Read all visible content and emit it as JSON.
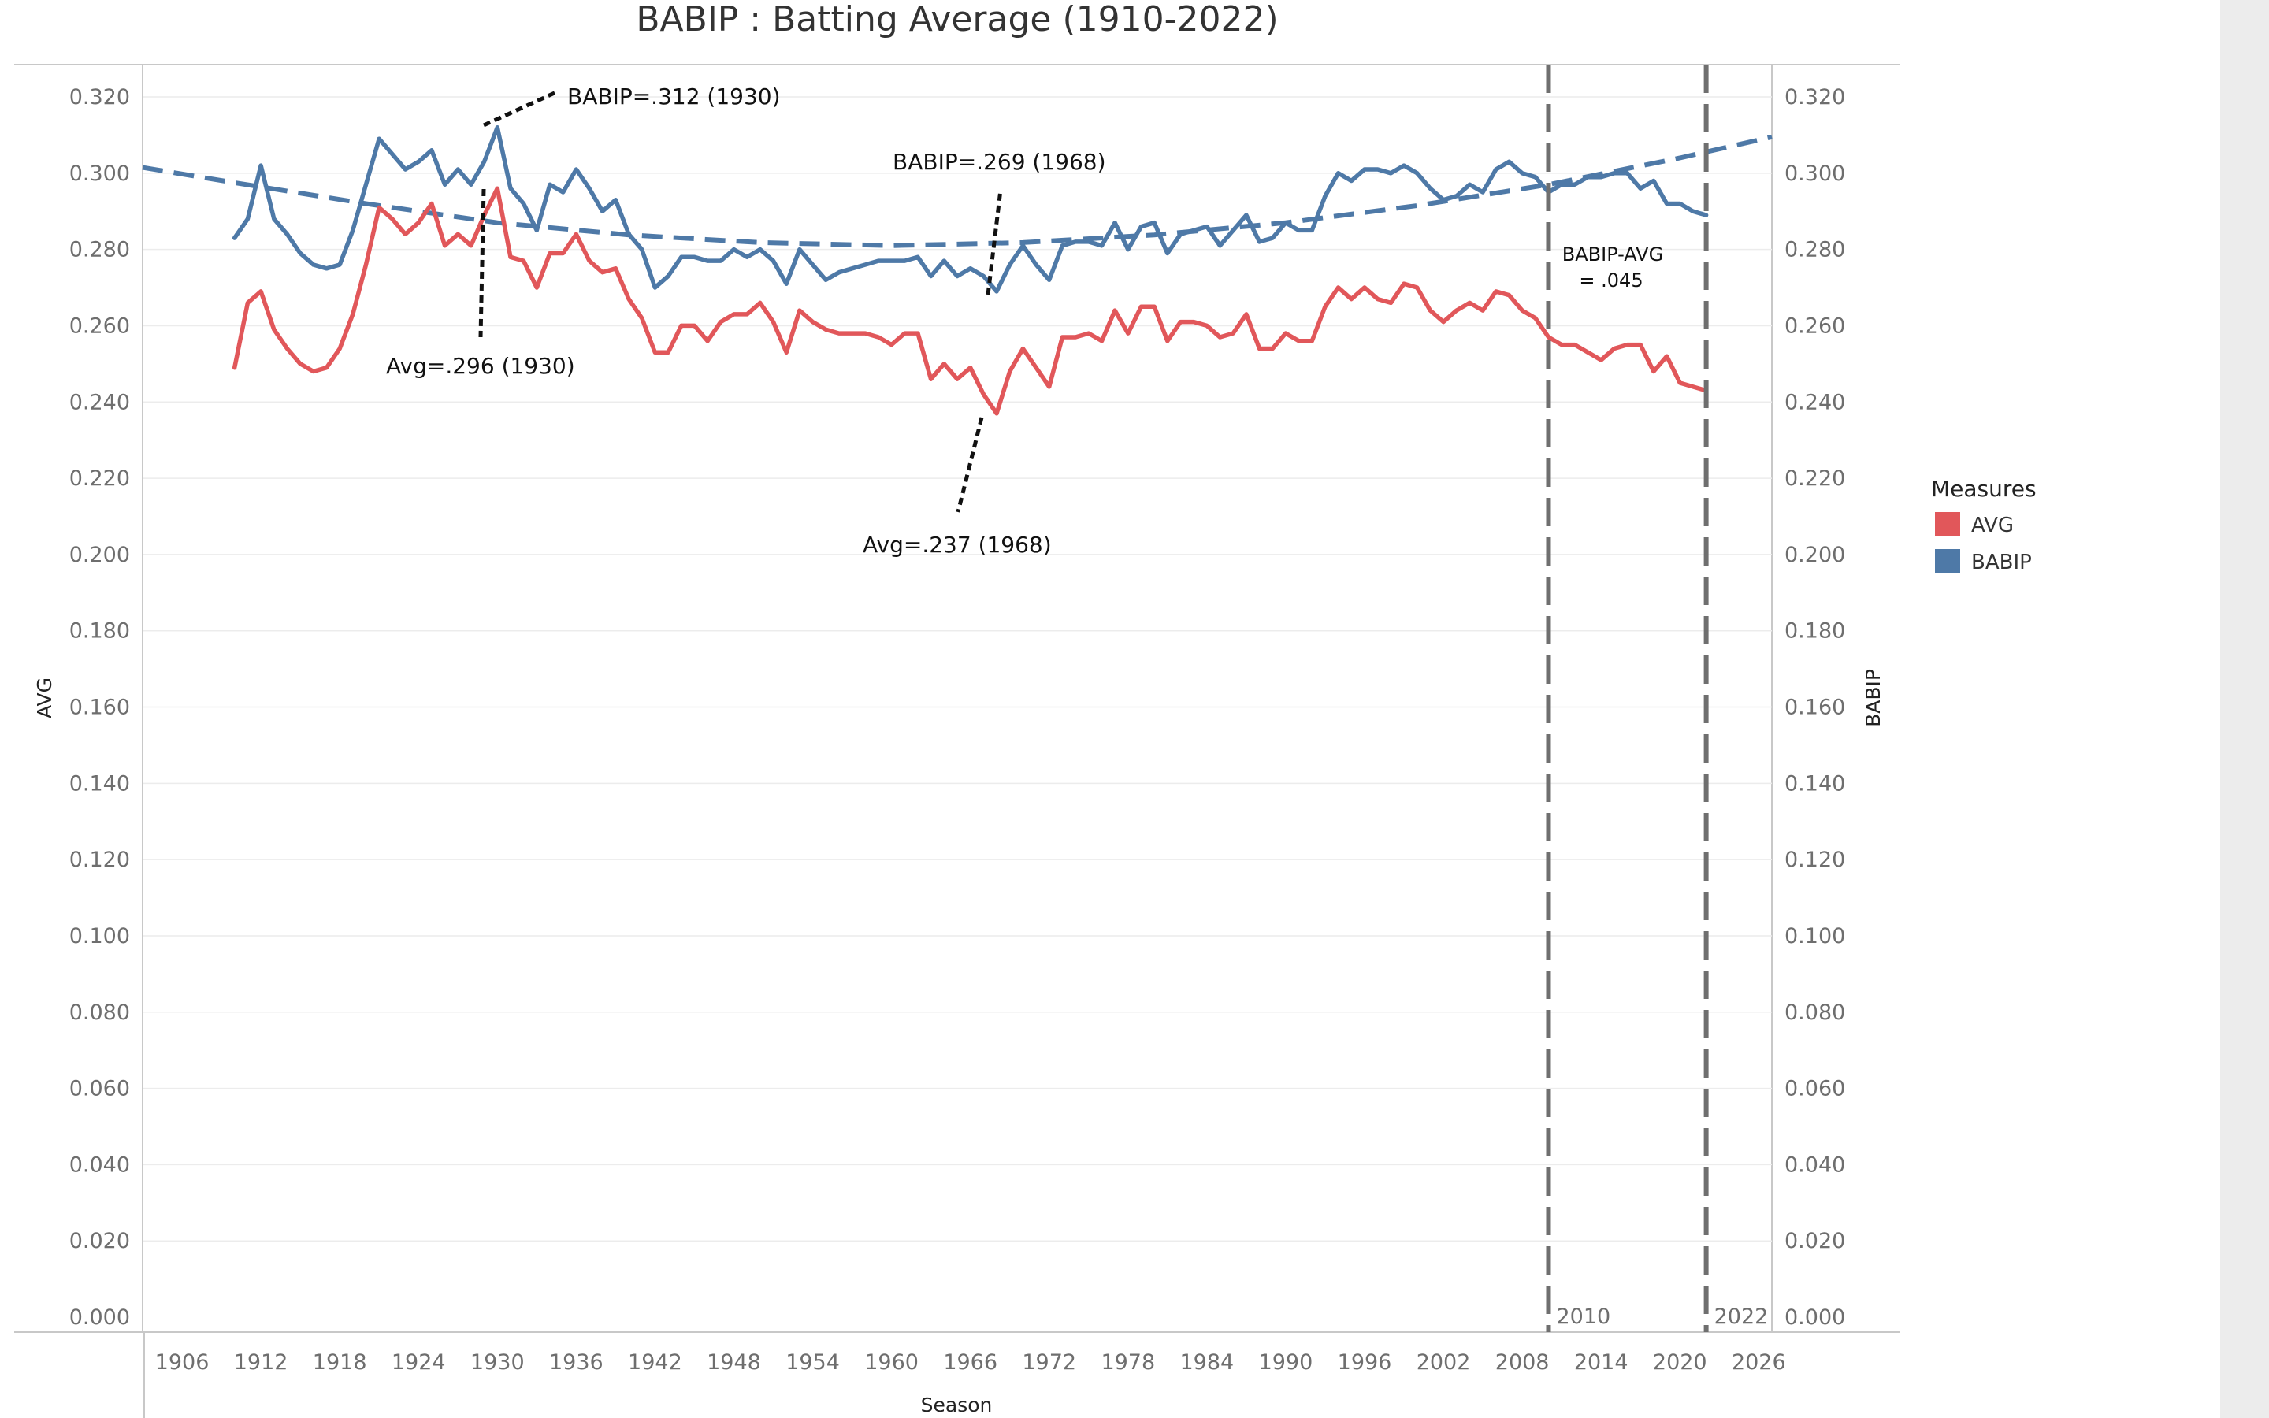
{
  "colors": {
    "avg": "#e1575a",
    "babip": "#4e79a7",
    "trend": "#4e79a7",
    "refline": "#6f6f6f",
    "grid": "#ececec"
  },
  "chart_data": {
    "type": "line",
    "title": "BABIP : Batting Average (1910-2022)",
    "xlabel": "Season",
    "ylabel_left": "AVG",
    "ylabel_right": "BABIP",
    "xlim": [
      1903,
      2027
    ],
    "ylim": [
      0,
      0.328
    ],
    "x_ticks": [
      1906,
      1912,
      1918,
      1924,
      1930,
      1936,
      1942,
      1948,
      1954,
      1960,
      1966,
      1972,
      1978,
      1984,
      1990,
      1996,
      2002,
      2008,
      2014,
      2020,
      2026
    ],
    "y_ticks": [
      "0.000",
      "0.020",
      "0.040",
      "0.060",
      "0.080",
      "0.100",
      "0.120",
      "0.140",
      "0.160",
      "0.180",
      "0.200",
      "0.220",
      "0.240",
      "0.260",
      "0.280",
      "0.300",
      "0.320"
    ],
    "years": [
      1910,
      1911,
      1912,
      1913,
      1914,
      1915,
      1916,
      1917,
      1918,
      1919,
      1920,
      1921,
      1922,
      1923,
      1924,
      1925,
      1926,
      1927,
      1928,
      1929,
      1930,
      1931,
      1932,
      1933,
      1934,
      1935,
      1936,
      1937,
      1938,
      1939,
      1940,
      1941,
      1942,
      1943,
      1944,
      1945,
      1946,
      1947,
      1948,
      1949,
      1950,
      1951,
      1952,
      1953,
      1954,
      1955,
      1956,
      1957,
      1958,
      1959,
      1960,
      1961,
      1962,
      1963,
      1964,
      1965,
      1966,
      1967,
      1968,
      1969,
      1970,
      1971,
      1972,
      1973,
      1974,
      1975,
      1976,
      1977,
      1978,
      1979,
      1980,
      1981,
      1982,
      1983,
      1984,
      1985,
      1986,
      1987,
      1988,
      1989,
      1990,
      1991,
      1992,
      1993,
      1994,
      1995,
      1996,
      1997,
      1998,
      1999,
      2000,
      2001,
      2002,
      2003,
      2004,
      2005,
      2006,
      2007,
      2008,
      2009,
      2010,
      2011,
      2012,
      2013,
      2014,
      2015,
      2016,
      2017,
      2018,
      2019,
      2020,
      2021,
      2022
    ],
    "series": [
      {
        "name": "AVG",
        "axis": "left",
        "values": [
          0.249,
          0.266,
          0.269,
          0.259,
          0.254,
          0.25,
          0.248,
          0.249,
          0.254,
          0.263,
          0.276,
          0.291,
          0.288,
          0.284,
          0.287,
          0.292,
          0.281,
          0.284,
          0.281,
          0.289,
          0.296,
          0.278,
          0.277,
          0.27,
          0.279,
          0.279,
          0.284,
          0.277,
          0.274,
          0.275,
          0.267,
          0.262,
          0.253,
          0.253,
          0.26,
          0.26,
          0.256,
          0.261,
          0.263,
          0.263,
          0.266,
          0.261,
          0.253,
          0.264,
          0.261,
          0.259,
          0.258,
          0.258,
          0.258,
          0.257,
          0.255,
          0.258,
          0.258,
          0.246,
          0.25,
          0.246,
          0.249,
          0.242,
          0.237,
          0.248,
          0.254,
          0.249,
          0.244,
          0.257,
          0.257,
          0.258,
          0.256,
          0.264,
          0.258,
          0.265,
          0.265,
          0.256,
          0.261,
          0.261,
          0.26,
          0.257,
          0.258,
          0.263,
          0.254,
          0.254,
          0.258,
          0.256,
          0.256,
          0.265,
          0.27,
          0.267,
          0.27,
          0.267,
          0.266,
          0.271,
          0.27,
          0.264,
          0.261,
          0.264,
          0.266,
          0.264,
          0.269,
          0.268,
          0.264,
          0.262,
          0.257,
          0.255,
          0.255,
          0.253,
          0.251,
          0.254,
          0.255,
          0.255,
          0.248,
          0.252,
          0.245,
          0.244,
          0.243
        ]
      },
      {
        "name": "BABIP",
        "axis": "right",
        "values": [
          0.283,
          0.288,
          0.302,
          0.288,
          0.284,
          0.279,
          0.276,
          0.275,
          0.276,
          0.285,
          0.297,
          0.309,
          0.305,
          0.301,
          0.303,
          0.306,
          0.297,
          0.301,
          0.297,
          0.303,
          0.312,
          0.296,
          0.292,
          0.285,
          0.297,
          0.295,
          0.301,
          0.296,
          0.29,
          0.293,
          0.284,
          0.28,
          0.27,
          0.273,
          0.278,
          0.278,
          0.277,
          0.277,
          0.28,
          0.278,
          0.28,
          0.277,
          0.271,
          0.28,
          0.276,
          0.272,
          0.274,
          0.275,
          0.276,
          0.277,
          0.277,
          0.277,
          0.278,
          0.273,
          0.277,
          0.273,
          0.275,
          0.273,
          0.269,
          0.276,
          0.281,
          0.276,
          0.272,
          0.281,
          0.282,
          0.282,
          0.281,
          0.287,
          0.28,
          0.286,
          0.287,
          0.279,
          0.284,
          0.285,
          0.286,
          0.281,
          0.285,
          0.289,
          0.282,
          0.283,
          0.287,
          0.285,
          0.285,
          0.294,
          0.3,
          0.298,
          0.301,
          0.301,
          0.3,
          0.302,
          0.3,
          0.296,
          0.293,
          0.294,
          0.297,
          0.295,
          0.301,
          0.303,
          0.3,
          0.299,
          0.295,
          0.297,
          0.297,
          0.299,
          0.299,
          0.3,
          0.3,
          0.296,
          0.298,
          0.292,
          0.292,
          0.29,
          0.289
        ]
      }
    ],
    "trend": {
      "name": "BABIP trend",
      "x": [
        1903,
        1910,
        1920,
        1930,
        1940,
        1950,
        1960,
        1970,
        1980,
        1990,
        2000,
        2010,
        2020,
        2027
      ],
      "values": [
        0.3015,
        0.2975,
        0.292,
        0.287,
        0.2838,
        0.2818,
        0.281,
        0.2818,
        0.2838,
        0.287,
        0.2915,
        0.297,
        0.304,
        0.3095
      ]
    },
    "reference_lines": [
      {
        "year": 2010,
        "label": "2010"
      },
      {
        "year": 2022,
        "label": "2022"
      }
    ],
    "annotations": [
      {
        "text": "BABIP=.312 (1930)"
      },
      {
        "text": "BABIP=.269 (1968)"
      },
      {
        "text": "Avg=.296 (1930)"
      },
      {
        "text": "Avg=.237 (1968)"
      },
      {
        "text": "BABIP-AVG",
        "text2": "= .045"
      }
    ],
    "legend": {
      "title": "Measures",
      "items": [
        {
          "label": "AVG",
          "series": "AVG"
        },
        {
          "label": "BABIP",
          "series": "BABIP"
        }
      ]
    }
  }
}
